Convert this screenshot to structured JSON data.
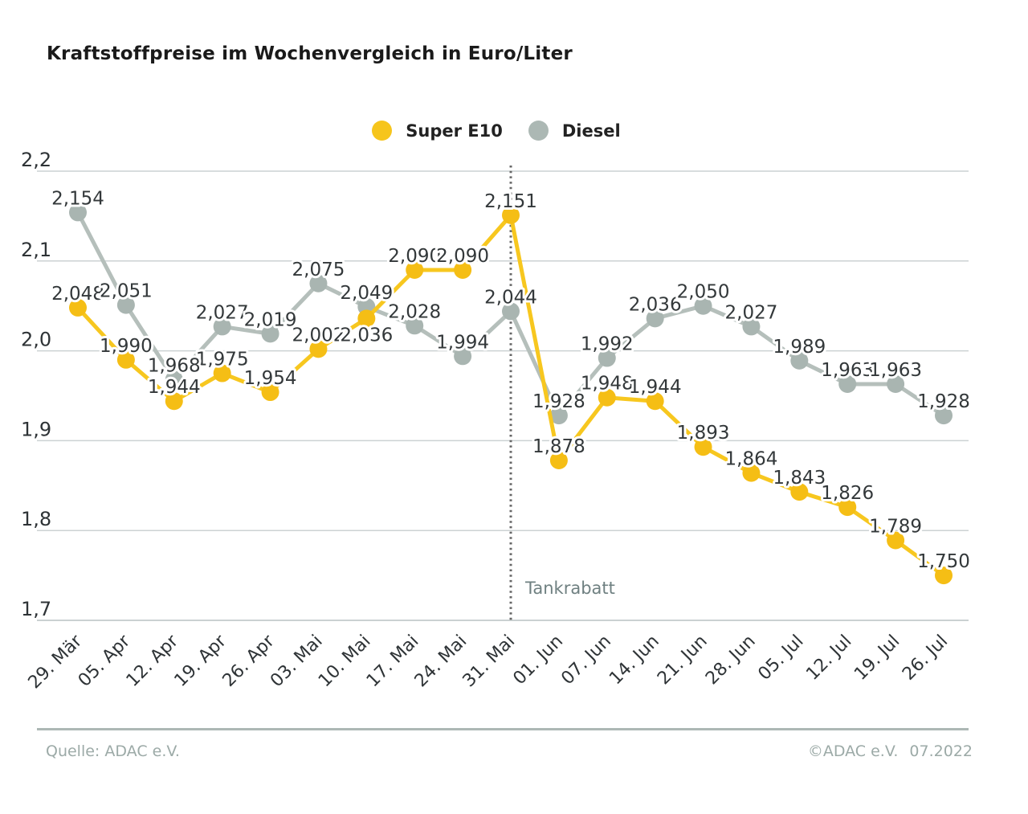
{
  "title": "Kraftstoffpreise im Wochenvergleich in Euro/Liter",
  "legend": [
    {
      "label": "Super E10",
      "color": "#f6c51c"
    },
    {
      "label": "Diesel",
      "color": "#acb8b4"
    }
  ],
  "chart_data": {
    "type": "line",
    "title": "Kraftstoffpreise im Wochenvergleich in Euro/Liter",
    "x": [
      "29. Mär",
      "05. Apr",
      "12. Apr",
      "19. Apr",
      "26. Apr",
      "03. Mai",
      "10. Mai",
      "17. Mai",
      "24. Mai",
      "31. Mai",
      "01. Jun",
      "07. Jun",
      "14. Jun",
      "21. Jun",
      "28. Jun",
      "05. Jul",
      "12. Jul",
      "19. Jul",
      "26. Jul"
    ],
    "series": [
      {
        "name": "Super E10",
        "line_color": "#f7c71f",
        "marker_color": "#f5be15",
        "values": [
          2.048,
          1.99,
          1.944,
          1.975,
          1.954,
          2.002,
          2.036,
          2.09,
          2.09,
          2.151,
          1.878,
          1.948,
          1.944,
          1.893,
          1.864,
          1.843,
          1.826,
          1.789,
          1.75
        ],
        "label_below_indices": [
          6
        ]
      },
      {
        "name": "Diesel",
        "line_color": "#b5bfbb",
        "marker_color": "#a9b5b1",
        "values": [
          2.154,
          2.051,
          1.968,
          2.027,
          2.019,
          2.075,
          2.049,
          2.028,
          1.994,
          2.044,
          1.928,
          1.992,
          2.036,
          2.05,
          2.027,
          1.989,
          1.963,
          1.963,
          1.928
        ],
        "label_below_indices": []
      }
    ],
    "ylim": [
      1.7,
      2.2
    ],
    "yticks": [
      2.2,
      2.1,
      2.0,
      1.9,
      1.8,
      1.7
    ],
    "value_decimals": 3,
    "decimal_separator": ",",
    "grid": true,
    "legend_position": "top-center",
    "annotation": {
      "text": "Tankrabatt",
      "x_index": 9
    }
  },
  "colors": {
    "gridline": "#ccd2d3",
    "bottom_gridline": "#b9c2c3",
    "axis_text": "#2e3336",
    "value_text": "#33383a",
    "annotation_line": "#666666",
    "annotation_text": "#6f8081",
    "label_halo": "#ffffff"
  },
  "footer": {
    "source": "Quelle: ADAC e.V.",
    "copyright": "©ADAC e.V.",
    "date": "07.2022"
  }
}
